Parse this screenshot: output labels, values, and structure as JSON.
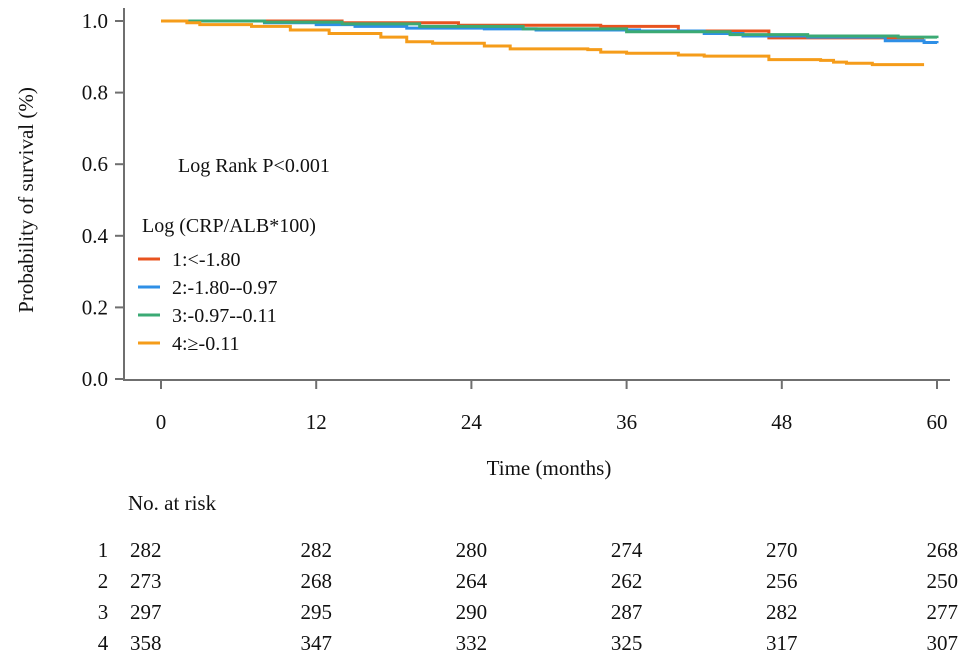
{
  "chart_data": {
    "type": "line",
    "subtype": "kaplan-meier",
    "xlabel": "Time (months)",
    "ylabel": "Probability of survival (%)",
    "xlim": [
      0,
      60
    ],
    "ylim": [
      0,
      1.0
    ],
    "xticks": [
      "0",
      "12",
      "24",
      "36",
      "48",
      "60"
    ],
    "yticks": [
      "0.0",
      "0.2",
      "0.4",
      "0.6",
      "0.8",
      "1.0"
    ],
    "grid": false,
    "annotation": "Log Rank P<0.001",
    "legend_title": "Log (CRP/ALB*100)",
    "legend_position": "center-left",
    "series": [
      {
        "name": "1:<-1.80",
        "color": "#E8531F",
        "points": [
          [
            0,
            1.0
          ],
          [
            14,
            1.0
          ],
          [
            14,
            0.995
          ],
          [
            23,
            0.995
          ],
          [
            23,
            0.988
          ],
          [
            34,
            0.985
          ],
          [
            40,
            0.972
          ],
          [
            47,
            0.96
          ],
          [
            47,
            0.953
          ],
          [
            59,
            0.953
          ]
        ]
      },
      {
        "name": "2:-1.80--0.97",
        "color": "#2E8FE6",
        "points": [
          [
            0,
            1.0
          ],
          [
            8,
            0.995
          ],
          [
            12,
            0.99
          ],
          [
            15,
            0.985
          ],
          [
            19,
            0.98
          ],
          [
            25,
            0.978
          ],
          [
            29,
            0.975
          ],
          [
            37,
            0.972
          ],
          [
            42,
            0.965
          ],
          [
            45,
            0.958
          ],
          [
            50,
            0.955
          ],
          [
            56,
            0.945
          ],
          [
            59,
            0.94
          ],
          [
            60,
            0.938
          ]
        ]
      },
      {
        "name": "3:-0.97--0.11",
        "color": "#3BAA74",
        "points": [
          [
            0,
            1.0
          ],
          [
            8,
            0.997
          ],
          [
            14,
            0.992
          ],
          [
            20,
            0.985
          ],
          [
            28,
            0.978
          ],
          [
            36,
            0.97
          ],
          [
            44,
            0.962
          ],
          [
            50,
            0.958
          ],
          [
            57,
            0.955
          ],
          [
            60,
            0.952
          ]
        ]
      },
      {
        "name": "4:≥-0.11",
        "color": "#F59C1A",
        "points": [
          [
            0,
            1.0
          ],
          [
            2,
            0.995
          ],
          [
            3,
            0.99
          ],
          [
            7,
            0.985
          ],
          [
            10,
            0.975
          ],
          [
            13,
            0.965
          ],
          [
            17,
            0.955
          ],
          [
            19,
            0.95
          ],
          [
            19,
            0.942
          ],
          [
            21,
            0.942
          ],
          [
            21,
            0.938
          ],
          [
            25,
            0.93
          ],
          [
            27,
            0.922
          ],
          [
            33,
            0.92
          ],
          [
            34,
            0.913
          ],
          [
            36,
            0.91
          ],
          [
            40,
            0.905
          ],
          [
            42,
            0.902
          ],
          [
            47,
            0.9
          ],
          [
            47,
            0.892
          ],
          [
            51,
            0.89
          ],
          [
            52,
            0.885
          ],
          [
            53,
            0.885
          ],
          [
            53,
            0.882
          ],
          [
            54,
            0.882
          ],
          [
            55,
            0.878
          ],
          [
            59,
            0.878
          ]
        ]
      }
    ],
    "risk_table": {
      "title": "No. at risk",
      "times": [
        0,
        12,
        24,
        36,
        48,
        60
      ],
      "rows": [
        {
          "label": "1",
          "values": [
            "282",
            "282",
            "280",
            "274",
            "270",
            "268"
          ]
        },
        {
          "label": "2",
          "values": [
            "273",
            "268",
            "264",
            "262",
            "256",
            "250"
          ]
        },
        {
          "label": "3",
          "values": [
            "297",
            "295",
            "290",
            "287",
            "282",
            "277"
          ]
        },
        {
          "label": "4",
          "values": [
            "358",
            "347",
            "332",
            "325",
            "317",
            "307"
          ]
        }
      ]
    }
  }
}
